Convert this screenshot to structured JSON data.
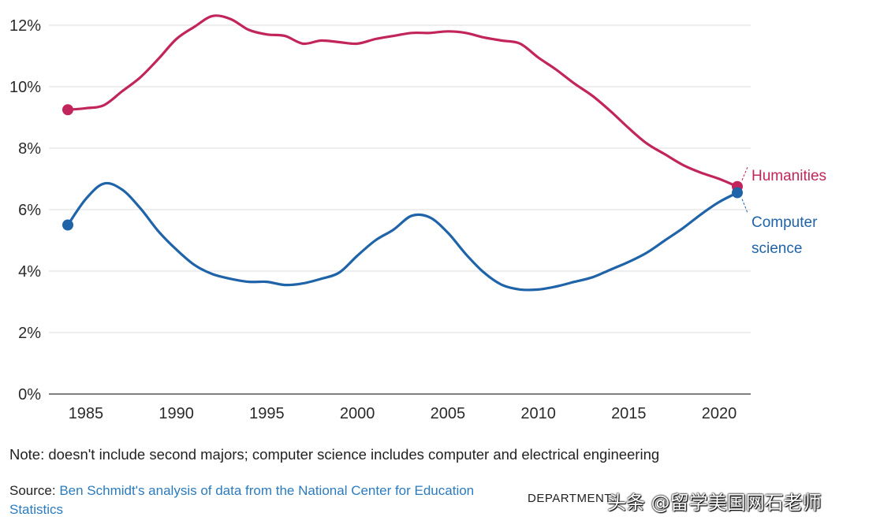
{
  "chart_data": {
    "type": "line",
    "title": "",
    "xlabel": "",
    "ylabel": "",
    "xlim": [
      1983.5,
      2022
    ],
    "ylim": [
      0,
      12
    ],
    "y_ticks": [
      "0%",
      "2%",
      "4%",
      "6%",
      "8%",
      "10%",
      "12%"
    ],
    "y_tick_values": [
      0,
      2,
      4,
      6,
      8,
      10,
      12
    ],
    "x_ticks": [
      "1985",
      "1990",
      "1995",
      "2000",
      "2005",
      "2010",
      "2015",
      "2020"
    ],
    "x_tick_values": [
      1985,
      1990,
      1995,
      2000,
      2005,
      2010,
      2015,
      2020
    ],
    "grid": "horizontal",
    "series": [
      {
        "name": "Humanities",
        "color": "#c2255c",
        "x": [
          1984,
          1985,
          1986,
          1987,
          1988,
          1989,
          1990,
          1991,
          1992,
          1993,
          1994,
          1995,
          1996,
          1997,
          1998,
          1999,
          2000,
          2001,
          2002,
          2003,
          2004,
          2005,
          2006,
          2007,
          2008,
          2009,
          2010,
          2011,
          2012,
          2013,
          2014,
          2015,
          2016,
          2017,
          2018,
          2019,
          2020,
          2021
        ],
        "values": [
          9.25,
          9.3,
          9.4,
          9.85,
          10.3,
          10.9,
          11.55,
          11.95,
          12.3,
          12.2,
          11.85,
          11.7,
          11.65,
          11.4,
          11.5,
          11.45,
          11.4,
          11.55,
          11.65,
          11.75,
          11.75,
          11.8,
          11.75,
          11.6,
          11.5,
          11.4,
          10.95,
          10.55,
          10.1,
          9.7,
          9.2,
          8.65,
          8.15,
          7.8,
          7.45,
          7.2,
          7.0,
          6.75
        ]
      },
      {
        "name": "Computer science",
        "color": "#1f63a8",
        "x": [
          1984,
          1985,
          1986,
          1987,
          1988,
          1989,
          1990,
          1991,
          1992,
          1993,
          1994,
          1995,
          1996,
          1997,
          1998,
          1999,
          2000,
          2001,
          2002,
          2003,
          2004,
          2005,
          2006,
          2007,
          2008,
          2009,
          2010,
          2011,
          2012,
          2013,
          2014,
          2015,
          2016,
          2017,
          2018,
          2019,
          2020,
          2021
        ],
        "values": [
          5.5,
          6.35,
          6.85,
          6.65,
          6.05,
          5.3,
          4.7,
          4.2,
          3.9,
          3.75,
          3.65,
          3.65,
          3.55,
          3.6,
          3.75,
          3.95,
          4.5,
          5.0,
          5.35,
          5.8,
          5.75,
          5.25,
          4.55,
          3.95,
          3.55,
          3.4,
          3.4,
          3.5,
          3.65,
          3.8,
          4.05,
          4.3,
          4.6,
          5.0,
          5.4,
          5.85,
          6.25,
          6.55
        ]
      }
    ],
    "labels": {
      "humanities": "Humanities",
      "cs_line1": "Computer",
      "cs_line2": "science"
    }
  },
  "note": "Note: doesn't include second majors; computer science includes computer and electrical engineering",
  "source_label": "Source:",
  "source_text": "Ben Schmidt's analysis of data from the National Center for Education Statistics",
  "credit": "DEPARTMENT",
  "watermark": "头条 @留学美国网石老师"
}
